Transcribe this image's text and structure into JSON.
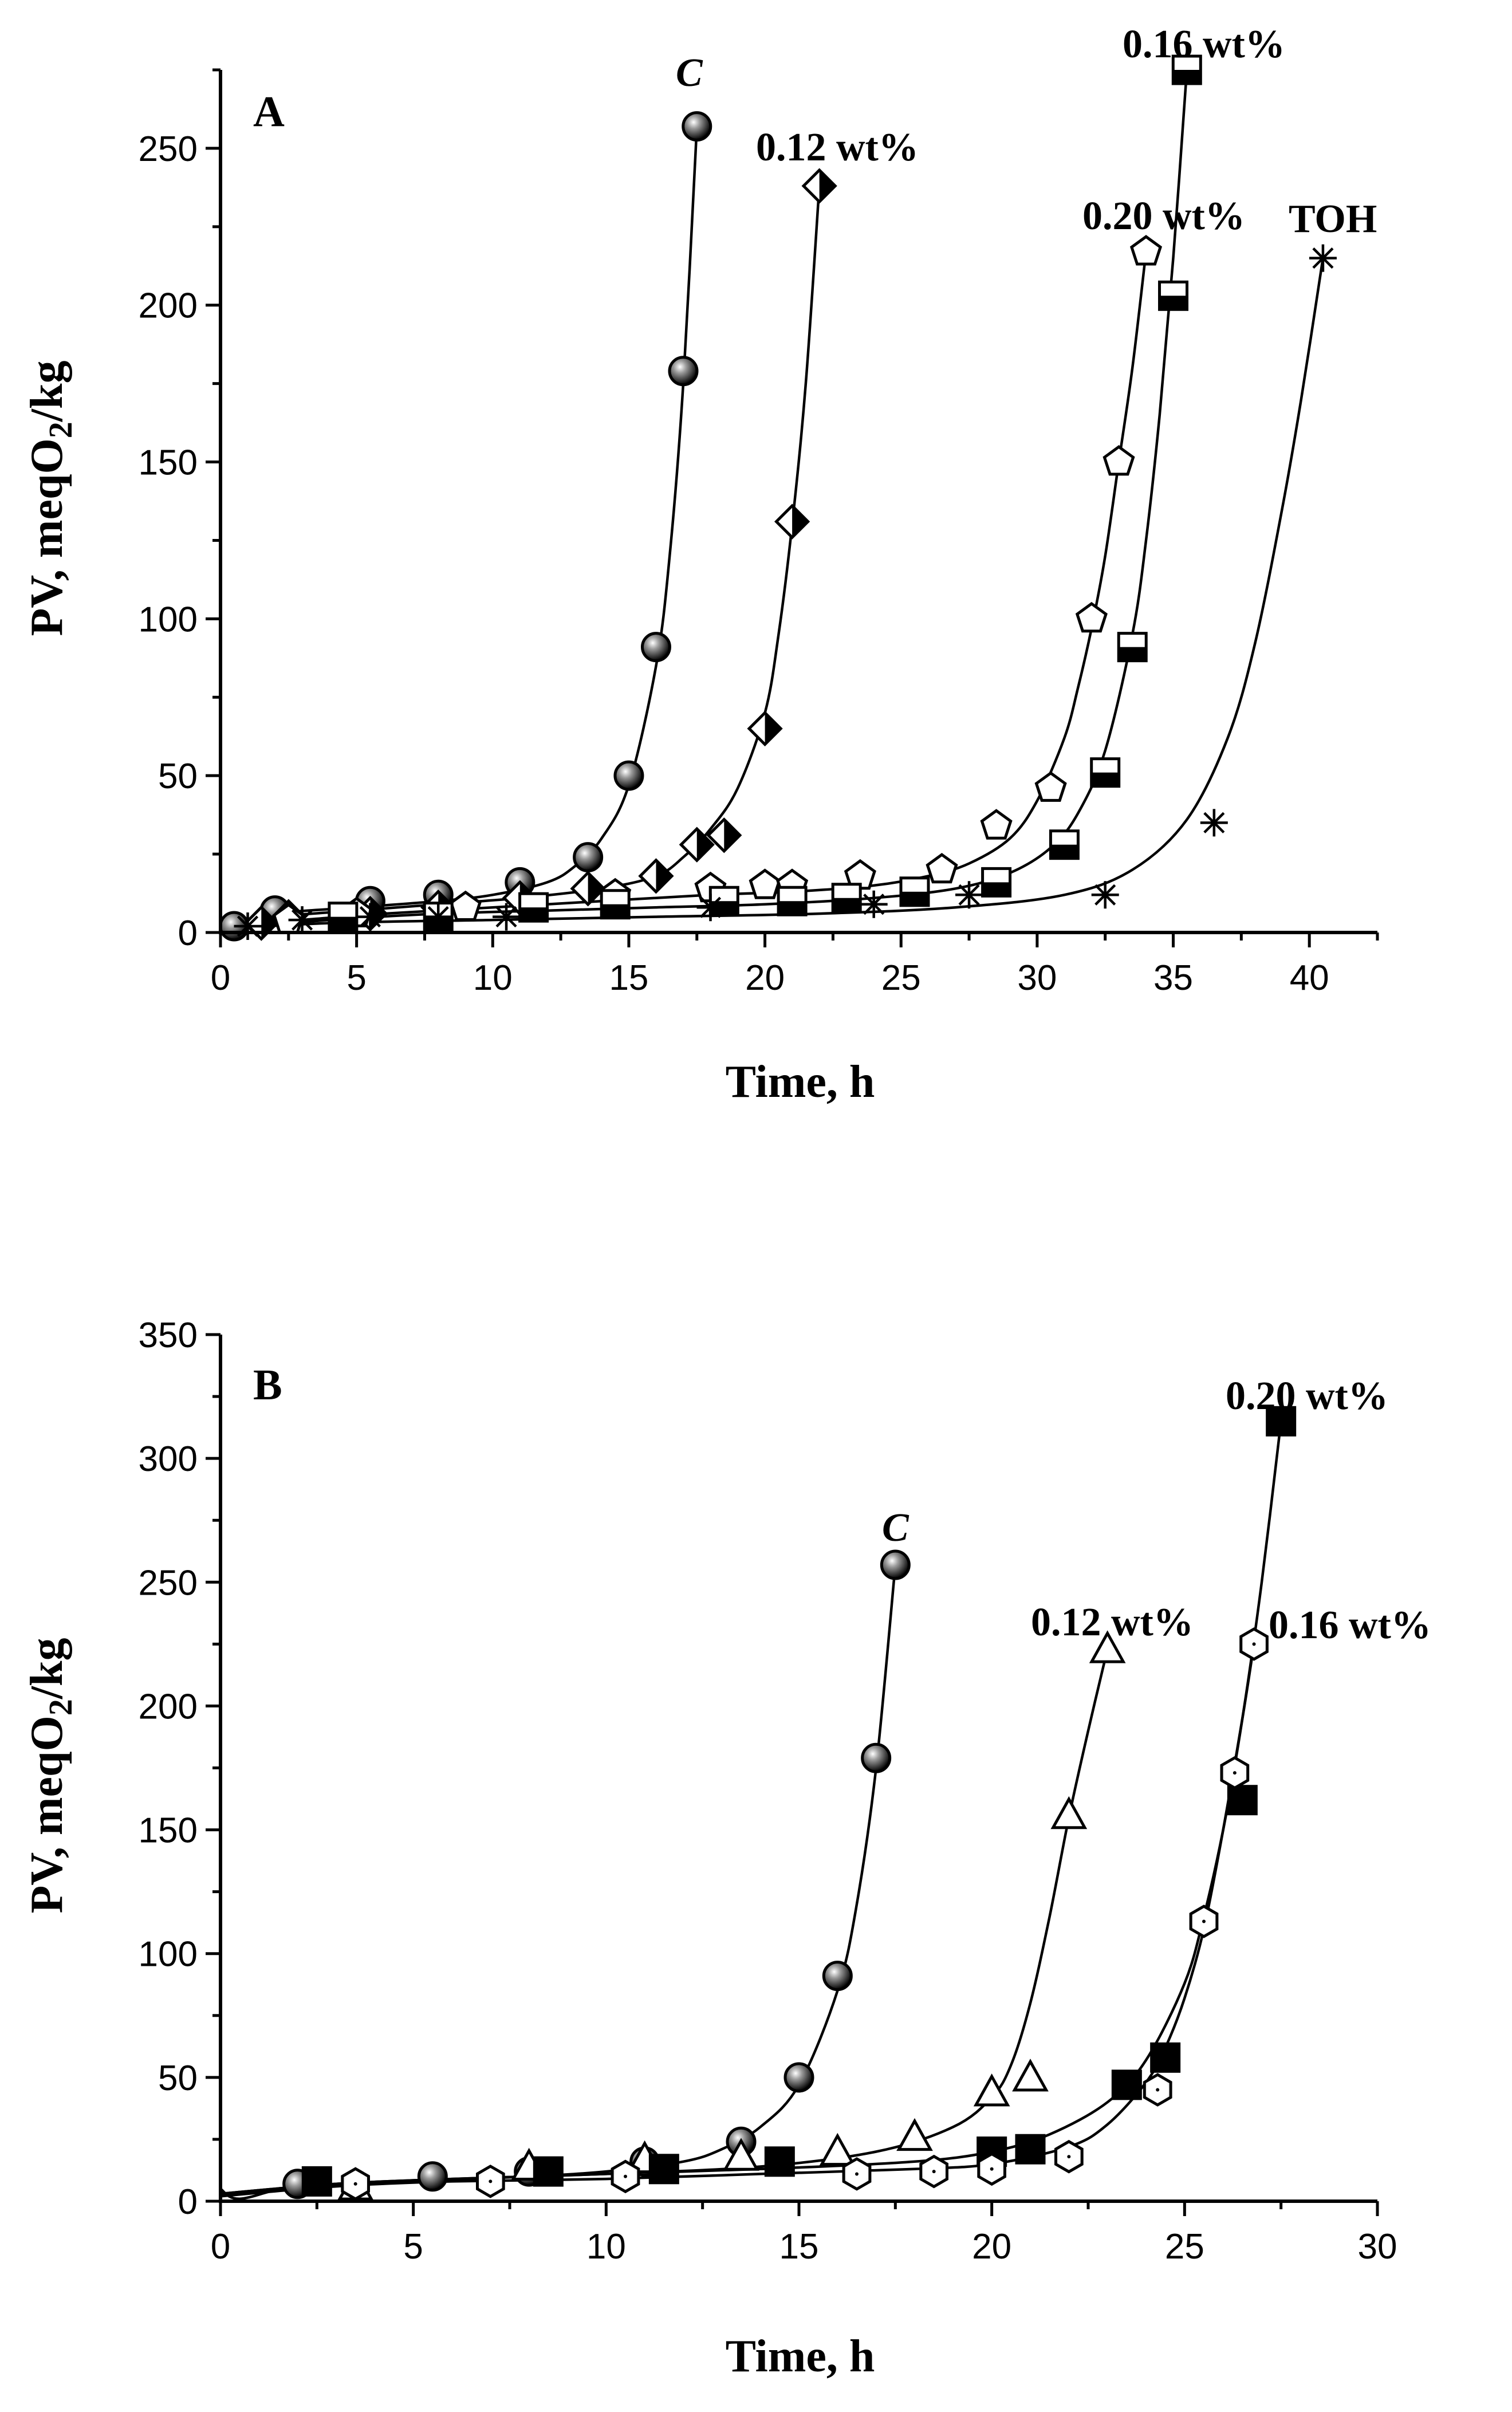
{
  "chart_data": [
    {
      "panel": "A",
      "type": "scatter",
      "xlabel": "Time, h",
      "ylabel": "PV, meqO",
      "ylabel_subscript": "2",
      "ylabel_suffix": "/kg",
      "xlim": [
        0,
        42.5
      ],
      "ylim": [
        0,
        275
      ],
      "xticks": [
        "0",
        "5",
        "10",
        "15",
        "20",
        "25",
        "30",
        "35",
        "40"
      ],
      "yticks": [
        "0",
        "50",
        "100",
        "150",
        "200",
        "250"
      ],
      "series": [
        {
          "name": "C",
          "italic": true,
          "marker": "sphere",
          "x": [
            0.5,
            2,
            5.5,
            8,
            11,
            13.5,
            15,
            16,
            17,
            17.5
          ],
          "y": [
            2,
            7,
            10,
            12,
            16,
            24,
            50,
            91,
            179,
            257
          ],
          "curve_x": [
            0,
            2,
            5,
            8,
            10,
            12,
            13,
            14,
            15,
            16,
            16.5,
            17,
            17.5
          ],
          "curve_y": [
            2,
            6,
            8,
            10,
            12,
            16,
            21,
            30,
            47,
            85,
            120,
            175,
            257
          ]
        },
        {
          "name": "0.12 wt%",
          "italic": false,
          "marker": "half-diamond",
          "x": [
            1.5,
            2.5,
            5.5,
            8,
            11,
            13.5,
            16,
            17.5,
            18.5,
            20,
            21,
            22
          ],
          "y": [
            3,
            5,
            6,
            8,
            11,
            14,
            18,
            28,
            31,
            65,
            131,
            238
          ],
          "curve_x": [
            0,
            2,
            5,
            8,
            11,
            14,
            16,
            17,
            18,
            19,
            20,
            20.5,
            21,
            21.5,
            22
          ],
          "curve_y": [
            2,
            5,
            7,
            9,
            11,
            14,
            18,
            24,
            33,
            46,
            70,
            95,
            130,
            175,
            238
          ]
        },
        {
          "name": "0.20 wt%",
          "italic": false,
          "marker": "pentagon",
          "x": [
            2.5,
            5,
            9,
            14.5,
            18,
            20,
            21,
            23.5,
            26.5,
            28.5,
            30.5,
            32,
            33,
            34
          ],
          "y": [
            4,
            6,
            8,
            12,
            14,
            15,
            15,
            18,
            20,
            34,
            46,
            100,
            150,
            217
          ],
          "curve_x": [
            0,
            3,
            6,
            10,
            14,
            18,
            21,
            24,
            26,
            27.5,
            29,
            30,
            31,
            31.5,
            32,
            32.5,
            33,
            33.5,
            34
          ],
          "curve_y": [
            2,
            4,
            6,
            8,
            10,
            12,
            13,
            15,
            18,
            22,
            30,
            42,
            62,
            78,
            97,
            120,
            150,
            180,
            217
          ]
        },
        {
          "name": "0.16 wt%",
          "italic": false,
          "marker": "half-square",
          "x": [
            4.5,
            8,
            11.5,
            14.5,
            18.5,
            21,
            23,
            25.5,
            28.5,
            31,
            32.5,
            33.5,
            35,
            35.5
          ],
          "y": [
            5,
            5,
            8,
            9,
            10,
            10,
            11,
            13,
            16,
            28,
            51,
            91,
            203,
            275
          ],
          "curve_x": [
            0,
            4,
            8,
            12,
            16,
            20,
            24,
            27,
            29,
            30.5,
            31.5,
            32.5,
            33.5,
            34,
            34.5,
            35,
            35.5
          ],
          "curve_y": [
            1,
            4,
            6,
            7,
            8,
            9,
            11,
            14,
            19,
            27,
            38,
            58,
            95,
            125,
            165,
            215,
            275
          ]
        },
        {
          "name": "TOH",
          "italic": false,
          "marker": "asterisk",
          "x": [
            1,
            3,
            5.5,
            8,
            10.5,
            18,
            24,
            27.5,
            32.5,
            36.5,
            40.5
          ],
          "y": [
            2,
            4,
            5,
            5,
            5,
            8,
            9,
            12,
            12,
            35,
            215
          ],
          "curve_x": [
            0,
            4,
            10,
            16,
            22,
            27,
            31,
            33.5,
            35.5,
            37,
            38,
            39,
            39.7,
            40.5
          ],
          "curve_y": [
            1,
            3,
            4,
            5,
            6,
            8,
            12,
            20,
            36,
            62,
            92,
            135,
            170,
            215
          ]
        }
      ]
    },
    {
      "panel": "B",
      "type": "scatter",
      "xlabel": "Time, h",
      "ylabel": "PV, meqO",
      "ylabel_subscript": "2",
      "ylabel_suffix": "/kg",
      "xlim": [
        0,
        30
      ],
      "ylim": [
        0,
        350
      ],
      "xticks": [
        "0",
        "5",
        "10",
        "15",
        "20",
        "25",
        "30"
      ],
      "yticks": [
        "0",
        "50",
        "100",
        "150",
        "200",
        "250",
        "300",
        "350"
      ],
      "series": [
        {
          "name": "C",
          "italic": true,
          "marker": "sphere",
          "x": [
            2,
            5.5,
            8,
            11,
            13.5,
            15,
            16,
            17,
            17.5
          ],
          "y": [
            7,
            10,
            12,
            16,
            24,
            50,
            91,
            179,
            257
          ],
          "curve_x": [
            0,
            0.5,
            2,
            5,
            8,
            10,
            12,
            13,
            14,
            15,
            16,
            16.5,
            17,
            17.5
          ],
          "curve_y": [
            5,
            1,
            6,
            8,
            10,
            12,
            16,
            21,
            30,
            47,
            85,
            120,
            175,
            257
          ]
        },
        {
          "name": "0.12 wt%",
          "italic": false,
          "marker": "triangle",
          "x": [
            3.5,
            8,
            11,
            13.5,
            16,
            18,
            20,
            21,
            22,
            23
          ],
          "y": [
            6,
            14,
            17,
            18,
            20,
            26,
            44,
            50,
            156,
            223
          ],
          "curve_x": [
            0,
            3,
            6,
            10,
            14,
            17,
            19,
            20,
            20.5,
            21,
            21.5,
            22,
            22.5,
            23
          ],
          "curve_y": [
            3,
            7,
            9,
            11,
            14,
            20,
            30,
            42,
            55,
            80,
            115,
            155,
            190,
            223
          ]
        },
        {
          "name": "0.20 wt%",
          "italic": false,
          "marker": "square",
          "x": [
            2.5,
            8.5,
            11.5,
            14.5,
            20,
            21,
            23.5,
            24.5,
            26.5,
            27.5
          ],
          "y": [
            8,
            12,
            13,
            16,
            20,
            21,
            47,
            58,
            162,
            315
          ],
          "curve_x": [
            0,
            3,
            6,
            10,
            14,
            18,
            20,
            21.5,
            23,
            24,
            25,
            25.5,
            26,
            26.5,
            27,
            27.5
          ],
          "curve_y": [
            3,
            7,
            9,
            11,
            13,
            16,
            20,
            27,
            40,
            57,
            88,
            115,
            150,
            195,
            250,
            315
          ]
        },
        {
          "name": "0.16 wt%",
          "italic": false,
          "marker": "hexagon",
          "x": [
            3.5,
            7,
            10.5,
            16.5,
            18.5,
            20,
            22,
            24.3,
            25.5,
            26.3,
            26.8
          ],
          "y": [
            7,
            8,
            10,
            11,
            12,
            13,
            18,
            45,
            113,
            173,
            225
          ],
          "curve_x": [
            0,
            3,
            6,
            10,
            14,
            18,
            20,
            22,
            23,
            24,
            24.5,
            25,
            25.5,
            26,
            26.5,
            26.8
          ],
          "curve_y": [
            2,
            6,
            8,
            9,
            11,
            13,
            15,
            22,
            31,
            48,
            62,
            82,
            110,
            150,
            195,
            225
          ]
        }
      ]
    }
  ]
}
